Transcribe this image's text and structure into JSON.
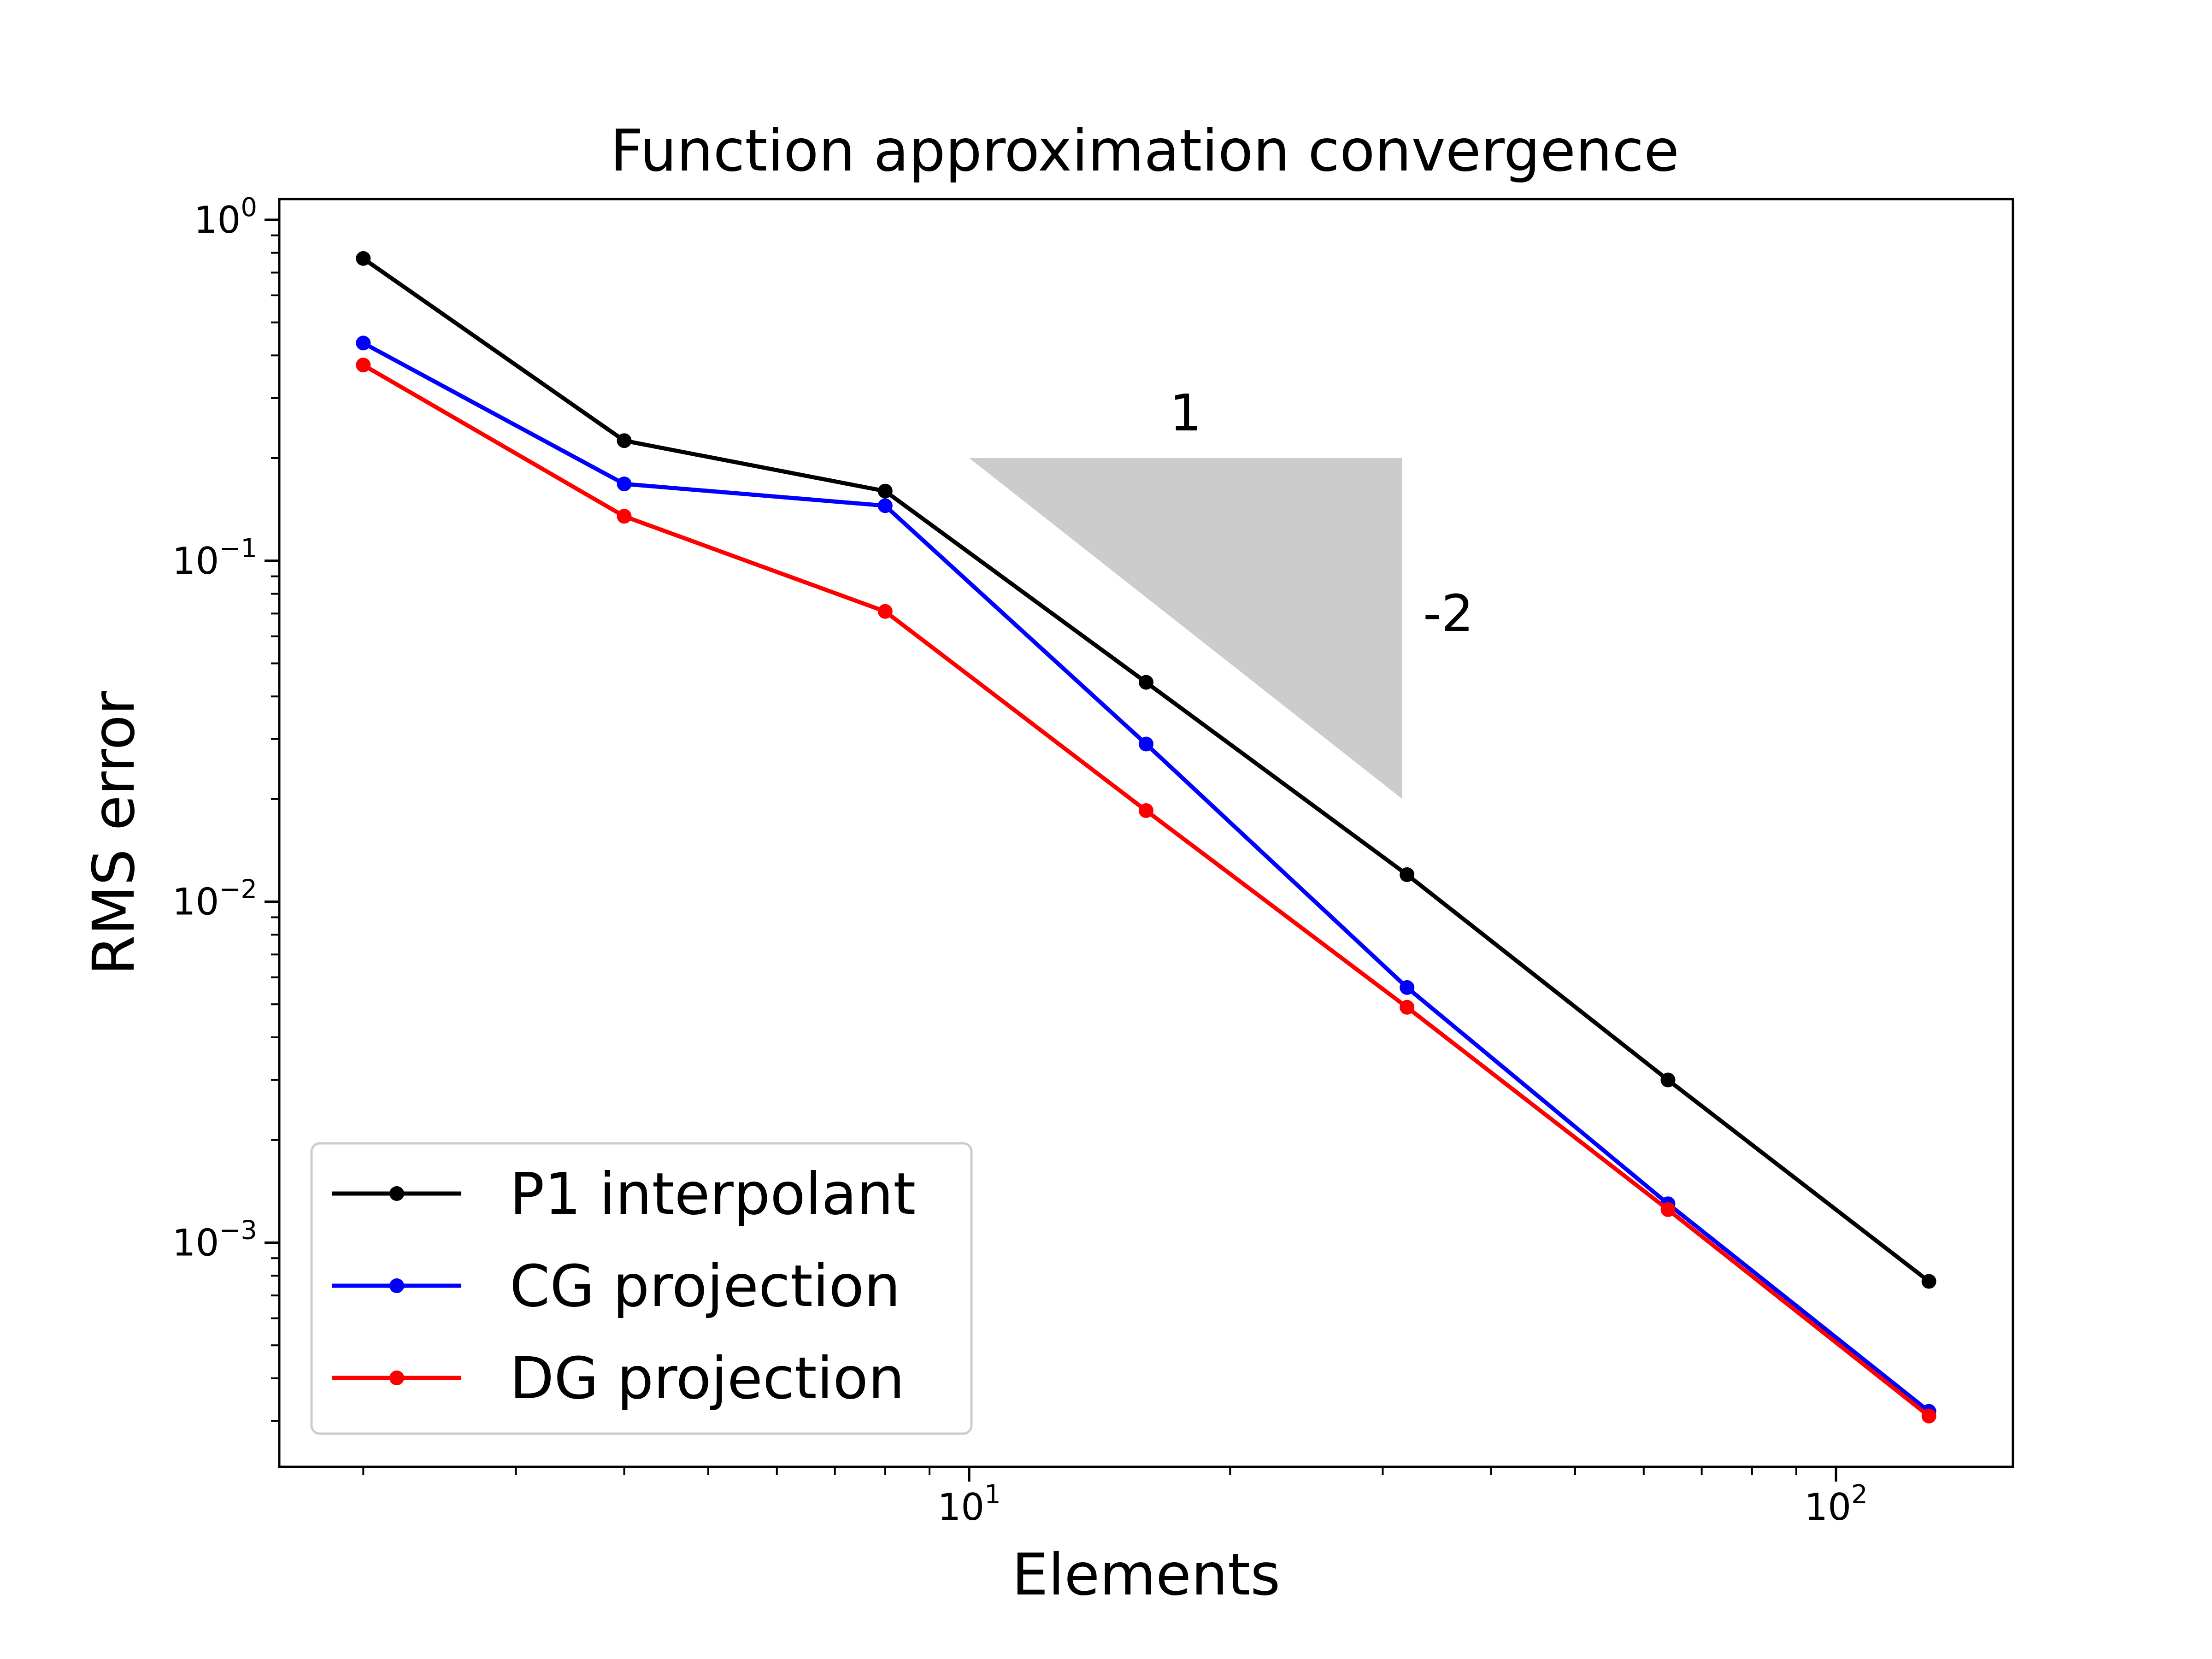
{
  "chart_data": {
    "type": "line",
    "title": "Function approximation convergence",
    "xlabel": "Elements",
    "ylabel": "RMS error",
    "xscale": "log",
    "yscale": "log",
    "xlim": [
      1.6,
      160
    ],
    "ylim": [
      0.00022,
      1.15
    ],
    "grid": false,
    "legend_position": "lower-left",
    "x_ticks": [
      {
        "value": 10,
        "base": "10",
        "exp": "1"
      },
      {
        "value": 100,
        "base": "10",
        "exp": "2"
      }
    ],
    "y_ticks": [
      {
        "value": 1,
        "base": "10",
        "exp": "0"
      },
      {
        "value": 0.1,
        "base": "10",
        "exp": "−1"
      },
      {
        "value": 0.01,
        "base": "10",
        "exp": "−2"
      },
      {
        "value": 0.001,
        "base": "10",
        "exp": "−3"
      }
    ],
    "x": [
      2,
      4,
      8,
      16,
      32,
      64,
      128
    ],
    "series": [
      {
        "name": "P1 interpolant",
        "color": "#000000",
        "values": [
          0.77,
          0.225,
          0.16,
          0.044,
          0.012,
          0.003,
          0.00077
        ]
      },
      {
        "name": "CG projection",
        "color": "#0000ff",
        "values": [
          0.435,
          0.168,
          0.145,
          0.029,
          0.0056,
          0.0013,
          0.00032
        ]
      },
      {
        "name": "DG projection",
        "color": "#ff0000",
        "values": [
          0.375,
          0.135,
          0.071,
          0.0185,
          0.0049,
          0.00125,
          0.00031
        ]
      }
    ],
    "slope_triangle": {
      "color": "#cccccc",
      "vertices": [
        [
          10,
          0.2
        ],
        [
          31.6,
          0.2
        ],
        [
          31.6,
          0.02
        ]
      ],
      "run_label": "1",
      "rise_label": "-2"
    }
  }
}
